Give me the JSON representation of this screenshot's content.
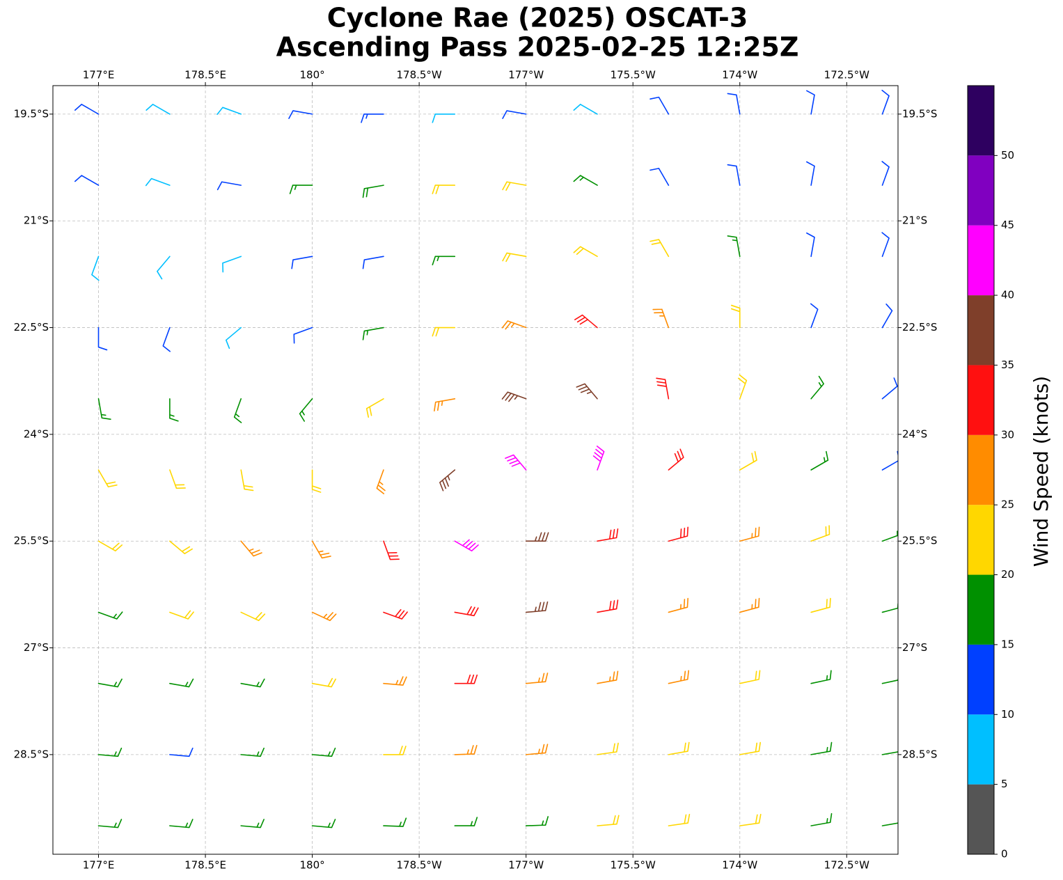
{
  "chart_data": {
    "type": "barbs",
    "title": "Cyclone Rae (2025) OSCAT-3",
    "subtitle": "Ascending Pass 2025-02-25 12:25Z",
    "xlim": [
      176.36,
      188.22
    ],
    "ylim": [
      -29.9,
      -19.1
    ],
    "xticks": [
      {
        "value": 177,
        "label": "177°E"
      },
      {
        "value": 178.5,
        "label": "178.5°E"
      },
      {
        "value": 180,
        "label": "180°"
      },
      {
        "value": 181.5,
        "label": "178.5°W"
      },
      {
        "value": 183,
        "label": "177°W"
      },
      {
        "value": 184.5,
        "label": "175.5°W"
      },
      {
        "value": 186,
        "label": "174°W"
      },
      {
        "value": 187.5,
        "label": "172.5°W"
      }
    ],
    "yticks": [
      {
        "value": -19.5,
        "label": "19.5°S"
      },
      {
        "value": -21,
        "label": "21°S"
      },
      {
        "value": -22.5,
        "label": "22.5°S"
      },
      {
        "value": -24,
        "label": "24°S"
      },
      {
        "value": -25.5,
        "label": "25.5°S"
      },
      {
        "value": -27,
        "label": "27°S"
      },
      {
        "value": -28.5,
        "label": "28.5°S"
      }
    ],
    "grid": true,
    "wind": {
      "lons": [
        177,
        178,
        179,
        180,
        181,
        182,
        183,
        184,
        185,
        186,
        187,
        188
      ],
      "lats": [
        -19.5,
        -20.5,
        -21.5,
        -22.5,
        -23.5,
        -24.5,
        -25.5,
        -26.5,
        -27.5,
        -28.5,
        -29.5
      ],
      "speed": [
        [
          12,
          8,
          8,
          12,
          14,
          8,
          12,
          8,
          12,
          12,
          12,
          12
        ],
        [
          12,
          8,
          12,
          17,
          18,
          22,
          22,
          17,
          12,
          12,
          12,
          12
        ],
        [
          8,
          8,
          8,
          12,
          12,
          17,
          22,
          22,
          22,
          17,
          12,
          12
        ],
        [
          12,
          12,
          8,
          12,
          17,
          22,
          27,
          32,
          27,
          22,
          12,
          12
        ],
        [
          17,
          17,
          17,
          17,
          22,
          27,
          37,
          37,
          32,
          22,
          17,
          12
        ],
        [
          22,
          22,
          22,
          22,
          27,
          37,
          42,
          42,
          32,
          22,
          17,
          12
        ],
        [
          22,
          22,
          27,
          27,
          32,
          42,
          37,
          32,
          32,
          27,
          22,
          17
        ],
        [
          17,
          22,
          22,
          27,
          32,
          32,
          37,
          32,
          27,
          27,
          22,
          17
        ],
        [
          17,
          17,
          17,
          22,
          27,
          32,
          27,
          27,
          27,
          22,
          17,
          17
        ],
        [
          17,
          12,
          17,
          17,
          22,
          27,
          27,
          22,
          22,
          22,
          17,
          17
        ],
        [
          17,
          17,
          17,
          17,
          17,
          17,
          17,
          22,
          22,
          22,
          17,
          17
        ]
      ],
      "direction": [
        [
          300,
          300,
          290,
          280,
          270,
          270,
          280,
          300,
          330,
          350,
          10,
          20
        ],
        [
          300,
          290,
          280,
          270,
          260,
          270,
          280,
          300,
          330,
          350,
          10,
          20
        ],
        [
          200,
          220,
          250,
          260,
          260,
          270,
          280,
          300,
          330,
          350,
          10,
          20
        ],
        [
          180,
          200,
          230,
          250,
          260,
          270,
          290,
          310,
          340,
          0,
          20,
          30
        ],
        [
          170,
          180,
          200,
          220,
          240,
          260,
          290,
          320,
          350,
          20,
          40,
          50
        ],
        [
          150,
          160,
          170,
          180,
          200,
          230,
          320,
          20,
          50,
          60,
          60,
          60
        ],
        [
          120,
          130,
          140,
          150,
          160,
          120,
          90,
          80,
          75,
          75,
          70,
          70
        ],
        [
          110,
          110,
          115,
          115,
          110,
          100,
          85,
          80,
          75,
          75,
          75,
          75
        ],
        [
          100,
          100,
          100,
          100,
          95,
          90,
          85,
          80,
          78,
          78,
          78,
          78
        ],
        [
          95,
          95,
          95,
          95,
          90,
          88,
          85,
          82,
          80,
          80,
          80,
          80
        ],
        [
          95,
          95,
          95,
          95,
          92,
          90,
          88,
          85,
          82,
          82,
          80,
          80
        ]
      ]
    },
    "colorbar": {
      "label": "Wind Speed (knots)",
      "lim": [
        0,
        55
      ],
      "ticks": [
        0,
        5,
        10,
        15,
        20,
        25,
        30,
        35,
        40,
        45,
        50
      ],
      "bounds": [
        0,
        5,
        10,
        15,
        20,
        25,
        30,
        35,
        40,
        45,
        50,
        55
      ],
      "colors": [
        "#555555",
        "#00bfff",
        "#0040ff",
        "#009000",
        "#ffd700",
        "#ff8c00",
        "#ff1010",
        "#7f3f2a",
        "#ff00ff",
        "#8000c0",
        "#2e0060"
      ]
    }
  }
}
